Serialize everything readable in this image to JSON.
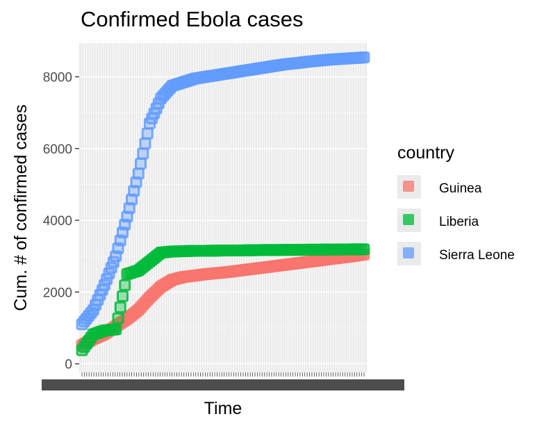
{
  "chart_data": {
    "type": "scatter",
    "title": "Confirmed Ebola cases",
    "xlabel": "Time",
    "ylabel": "Cum. # of confirmed cases",
    "ylim": [
      0,
      9000
    ],
    "y_ticks": [
      0,
      2000,
      4000,
      6000,
      8000
    ],
    "x_tick_labels_note": "",
    "grid": true,
    "legend_position": "right",
    "legend_title": "country",
    "x": [
      0,
      0.04,
      0.08,
      0.12,
      0.16,
      0.2,
      0.24,
      0.28,
      0.32,
      0.36,
      0.4,
      0.44,
      0.48,
      0.52,
      0.56,
      0.6,
      0.64,
      0.68,
      0.72,
      0.76,
      0.8,
      0.84,
      0.88,
      0.92,
      0.96,
      1.0
    ],
    "series": [
      {
        "name": "Guinea",
        "color": "#F8766D",
        "values": [
          520,
          690,
          830,
          1050,
          1250,
          1500,
          1850,
          2150,
          2340,
          2420,
          2460,
          2500,
          2530,
          2560,
          2600,
          2640,
          2680,
          2720,
          2760,
          2800,
          2840,
          2880,
          2920,
          2960,
          3000,
          3050
        ]
      },
      {
        "name": "Liberia",
        "color": "#00BA38",
        "values": [
          380,
          820,
          930,
          960,
          2500,
          2600,
          2850,
          3100,
          3130,
          3140,
          3150,
          3150,
          3155,
          3160,
          3160,
          3165,
          3170,
          3170,
          3175,
          3175,
          3180,
          3180,
          3185,
          3185,
          3190,
          3190
        ]
      },
      {
        "name": "Sierra Leone",
        "color": "#619CFF",
        "values": [
          1100,
          1500,
          2200,
          3000,
          4100,
          5300,
          6700,
          7400,
          7750,
          7850,
          7950,
          8000,
          8050,
          8100,
          8150,
          8200,
          8250,
          8300,
          8350,
          8380,
          8420,
          8450,
          8480,
          8500,
          8520,
          8540
        ]
      }
    ]
  }
}
